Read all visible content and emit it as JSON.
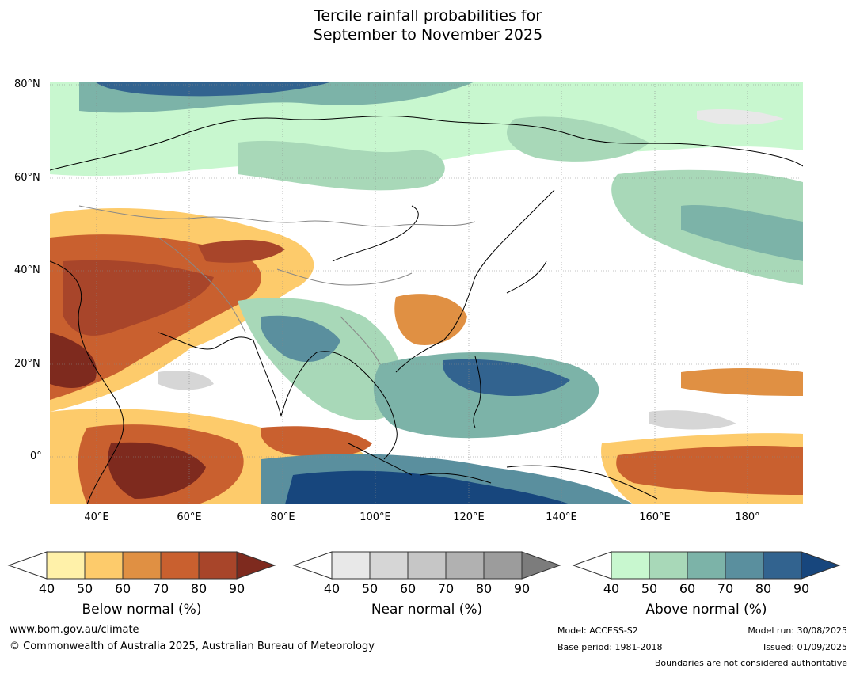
{
  "title": {
    "line1": "Tercile rainfall probabilities for",
    "line2": "September to November 2025"
  },
  "map": {
    "lat_labels": [
      "80°N",
      "60°N",
      "40°N",
      "20°N",
      "0°"
    ],
    "lon_labels": [
      "40°E",
      "60°E",
      "80°E",
      "100°E",
      "120°E",
      "140°E",
      "160°E",
      "180°"
    ]
  },
  "colorbars": [
    {
      "title": "Below normal (%)",
      "ticks": [
        "40",
        "50",
        "60",
        "70",
        "80",
        "90"
      ],
      "colors": [
        "#fff1a9",
        "#fdcb6b",
        "#e09043",
        "#c9602f",
        "#a8452a",
        "#7e2a1e"
      ]
    },
    {
      "title": "Near normal (%)",
      "ticks": [
        "40",
        "50",
        "60",
        "70",
        "80",
        "90"
      ],
      "colors": [
        "#e8e8e8",
        "#d6d6d6",
        "#c6c6c6",
        "#b1b1b1",
        "#9c9c9c",
        "#7c7c7c"
      ]
    },
    {
      "title": "Above normal (%)",
      "ticks": [
        "40",
        "50",
        "60",
        "70",
        "80",
        "90"
      ],
      "colors": [
        "#c8f7cf",
        "#a8d8b8",
        "#7cb3a8",
        "#5a8f9e",
        "#32638f",
        "#17467d"
      ]
    }
  ],
  "footer": {
    "url": "www.bom.gov.au/climate",
    "copyright": "© Commonwealth of Australia 2025, Australian Bureau of Meteorology",
    "model": "Model: ACCESS-S2",
    "base_period": "Base period: 1981-2018",
    "model_run": "Model run: 30/08/2025",
    "issued": "Issued: 01/09/2025",
    "boundaries": "Boundaries are not considered authoritative"
  }
}
